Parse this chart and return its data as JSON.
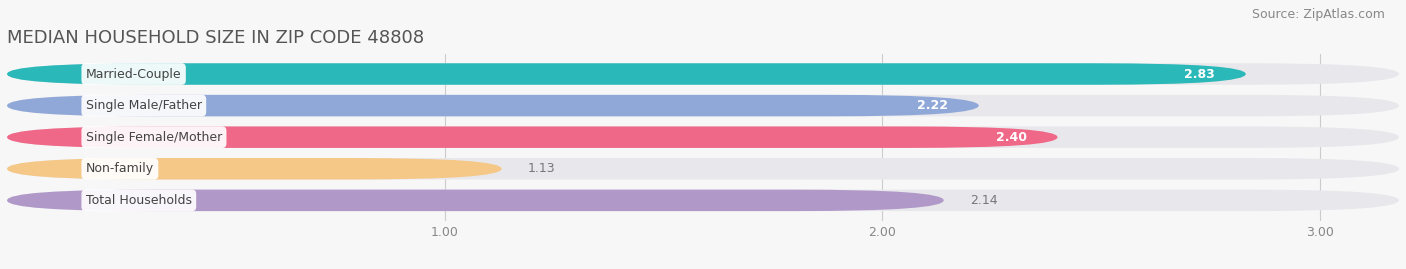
{
  "title": "MEDIAN HOUSEHOLD SIZE IN ZIP CODE 48808",
  "source": "Source: ZipAtlas.com",
  "categories": [
    "Married-Couple",
    "Single Male/Father",
    "Single Female/Mother",
    "Non-family",
    "Total Households"
  ],
  "values": [
    2.83,
    2.22,
    2.4,
    1.13,
    2.14
  ],
  "bar_colors": [
    "#2ab8b8",
    "#90a8d8",
    "#f06888",
    "#f5c888",
    "#b098c8"
  ],
  "value_inside": [
    true,
    true,
    true,
    false,
    false
  ],
  "xlim_data": [
    0,
    3.18
  ],
  "xlim_display": [
    0,
    3.0
  ],
  "xticks": [
    1.0,
    2.0,
    3.0
  ],
  "title_fontsize": 13,
  "source_fontsize": 9,
  "bar_height": 0.68,
  "background_color": "#f7f7f7",
  "bar_bg_color": "#e8e8ec"
}
